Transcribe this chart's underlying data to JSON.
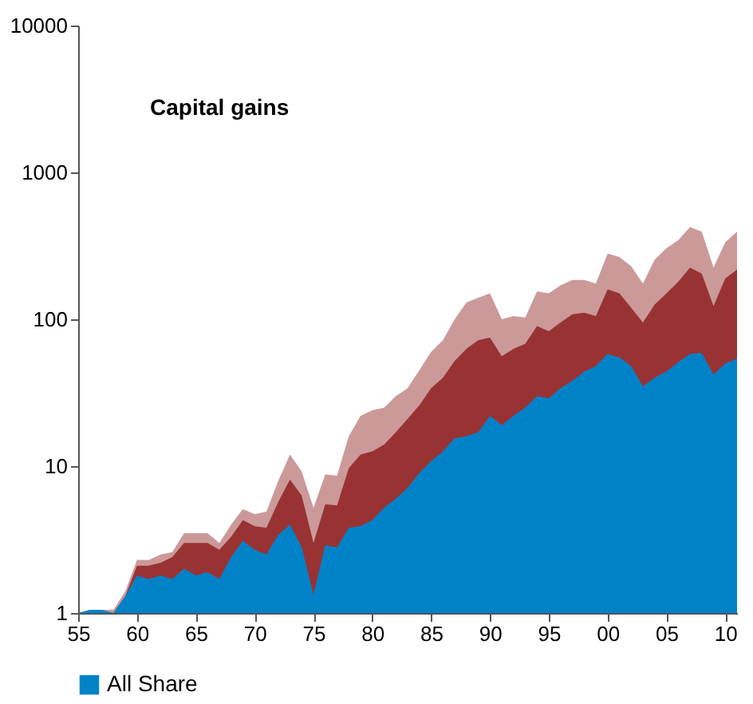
{
  "chart_data": {
    "type": "area",
    "title": "Capital gains",
    "x": [
      1955,
      1956,
      1957,
      1958,
      1959,
      1960,
      1961,
      1962,
      1963,
      1964,
      1965,
      1966,
      1967,
      1968,
      1969,
      1970,
      1971,
      1972,
      1973,
      1974,
      1975,
      1976,
      1977,
      1978,
      1979,
      1980,
      1981,
      1982,
      1983,
      1984,
      1985,
      1986,
      1987,
      1988,
      1989,
      1990,
      1991,
      1992,
      1993,
      1994,
      1995,
      1996,
      1997,
      1998,
      1999,
      2000,
      2001,
      2002,
      2003,
      2004,
      2005,
      2006,
      2007,
      2008,
      2009,
      2010,
      2011
    ],
    "series": [
      {
        "color": "#cc9999",
        "values": [
          1,
          1.05,
          1.05,
          1.05,
          1.4,
          2.3,
          2.3,
          2.5,
          2.6,
          3.5,
          3.5,
          3.5,
          3,
          4,
          5.1,
          4.7,
          4.9,
          7.9,
          12,
          9.2,
          5.2,
          8.8,
          8.6,
          16,
          22,
          24,
          25,
          30,
          34,
          45,
          60,
          72,
          100,
          130,
          140,
          150,
          100,
          105,
          103,
          155,
          150,
          170,
          185,
          185,
          175,
          280,
          265,
          230,
          175,
          255,
          305,
          345,
          425,
          395,
          225,
          335,
          395
        ]
      },
      {
        "color": "#993333",
        "values": [
          1,
          1.02,
          1.02,
          1,
          1.3,
          2.1,
          2.1,
          2.2,
          2.4,
          3,
          3,
          3,
          2.7,
          3.3,
          4.3,
          3.9,
          3.8,
          5.7,
          8.1,
          6.3,
          3,
          5.5,
          5.4,
          9.7,
          12,
          12.6,
          14,
          17,
          21,
          26,
          34,
          40,
          52,
          63,
          72,
          75,
          56,
          63,
          68,
          90,
          83,
          95,
          108,
          111,
          105,
          160,
          150,
          120,
          95,
          126,
          150,
          180,
          225,
          205,
          123,
          190,
          218
        ]
      },
      {
        "name": "All Share",
        "color": "#0082c8",
        "values": [
          1,
          1.05,
          1.05,
          1,
          1.3,
          1.8,
          1.7,
          1.8,
          1.7,
          2,
          1.8,
          1.9,
          1.7,
          2.4,
          3.1,
          2.7,
          2.5,
          3.4,
          4,
          2.8,
          1.33,
          2.9,
          2.8,
          3.8,
          3.9,
          4.3,
          5.2,
          6,
          7.1,
          9,
          10.8,
          12.6,
          15.5,
          16,
          17,
          22,
          19,
          22,
          25,
          30,
          29,
          34,
          38,
          44,
          48,
          58,
          55,
          48,
          35,
          40,
          44,
          51,
          58,
          59,
          42,
          50,
          54
        ]
      }
    ],
    "xlim": [
      1955,
      2011
    ],
    "xticks": [
      {
        "value": 1955,
        "label": "55"
      },
      {
        "value": 1960,
        "label": "60"
      },
      {
        "value": 1965,
        "label": "65"
      },
      {
        "value": 1970,
        "label": "70"
      },
      {
        "value": 1975,
        "label": "75"
      },
      {
        "value": 1980,
        "label": "80"
      },
      {
        "value": 1985,
        "label": "85"
      },
      {
        "value": 1990,
        "label": "90"
      },
      {
        "value": 1995,
        "label": "95"
      },
      {
        "value": 2000,
        "label": "00"
      },
      {
        "value": 2005,
        "label": "05"
      },
      {
        "value": 2010,
        "label": "10"
      }
    ],
    "ylim": [
      1,
      10000
    ],
    "yticks": [
      1,
      10,
      100,
      1000,
      10000
    ],
    "log": true,
    "grid": false,
    "legend": "bottom"
  }
}
